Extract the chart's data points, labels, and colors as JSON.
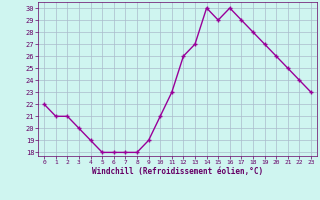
{
  "x": [
    0,
    1,
    2,
    3,
    4,
    5,
    6,
    7,
    8,
    9,
    10,
    11,
    12,
    13,
    14,
    15,
    16,
    17,
    18,
    19,
    20,
    21,
    22,
    23
  ],
  "y": [
    22,
    21,
    21,
    20,
    19,
    18,
    18,
    18,
    18,
    19,
    21,
    23,
    26,
    27,
    30,
    29,
    30,
    29,
    28,
    27,
    26,
    25,
    24,
    23
  ],
  "line_color": "#990099",
  "marker": "+",
  "marker_size": 3.5,
  "bg_color": "#cff5f0",
  "grid_color": "#aabbcc",
  "xlabel": "Windchill (Refroidissement éolien,°C)",
  "xlabel_color": "#660066",
  "tick_color": "#660066",
  "ylim": [
    18,
    30
  ],
  "yticks": [
    18,
    19,
    20,
    21,
    22,
    23,
    24,
    25,
    26,
    27,
    28,
    29,
    30
  ],
  "xticks": [
    0,
    1,
    2,
    3,
    4,
    5,
    6,
    7,
    8,
    9,
    10,
    11,
    12,
    13,
    14,
    15,
    16,
    17,
    18,
    19,
    20,
    21,
    22,
    23
  ],
  "line_width": 1.0,
  "marker_color": "#990099"
}
